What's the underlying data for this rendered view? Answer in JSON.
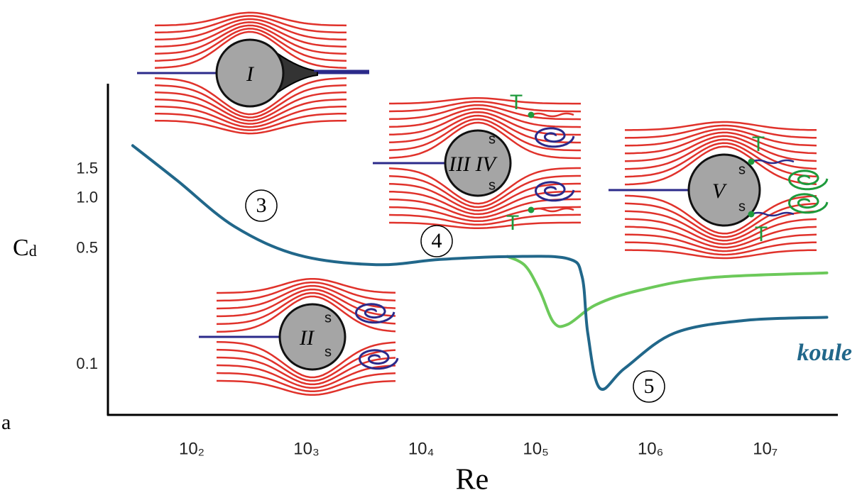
{
  "chart_data": {
    "type": "line",
    "panel_label": "a",
    "x_label": "Re",
    "y_label": {
      "main": "C",
      "sub": "d"
    },
    "log_x": true,
    "log_y": true,
    "xlim": [
      18.6,
      43000000
    ],
    "ylim": [
      0.05,
      4.9
    ],
    "xticks": [
      {
        "value": 100,
        "label": "10₂"
      },
      {
        "value": 1000,
        "label": "10₃"
      },
      {
        "value": 10000,
        "label": "10₄"
      },
      {
        "value": 100000,
        "label": "10₅"
      },
      {
        "value": 1000000,
        "label": "10₆"
      },
      {
        "value": 10000000,
        "label": "10₇"
      }
    ],
    "yticks": [
      0.1,
      0.5,
      {
        "value": 1,
        "label": "1.0"
      },
      1.5
    ],
    "series": [
      {
        "name": "koule",
        "color": "#21678a",
        "x": [
          30.6,
          75,
          235,
          848,
          4060,
          14650,
          61000,
          190000,
          253000,
          284000,
          361000,
          596000,
          1610000,
          6700000,
          34500000
        ],
        "values": [
          2.08,
          1.28,
          0.68,
          0.457,
          0.4,
          0.43,
          0.448,
          0.435,
          0.34,
          0.155,
          0.0724,
          0.0953,
          0.155,
          0.185,
          0.193
        ]
      },
      {
        "color": "#6cc95a",
        "x": [
          56700,
          80900,
          108000,
          143000,
          190000,
          336000,
          792000,
          3290000,
          34500000
        ],
        "values": [
          0.448,
          0.394,
          0.28,
          0.18,
          0.175,
          0.23,
          0.28,
          0.334,
          0.357
        ]
      }
    ],
    "annotations": [
      "3",
      "4",
      "5"
    ],
    "insets": [
      {
        "label": "I",
        "marks": []
      },
      {
        "label": "II",
        "marks": [
          "s",
          "s"
        ]
      },
      {
        "label": "III IV",
        "marks": [
          "s",
          "s",
          "T",
          "T"
        ]
      },
      {
        "label": "V",
        "marks": [
          "s",
          "s",
          "T",
          "T"
        ]
      }
    ]
  }
}
